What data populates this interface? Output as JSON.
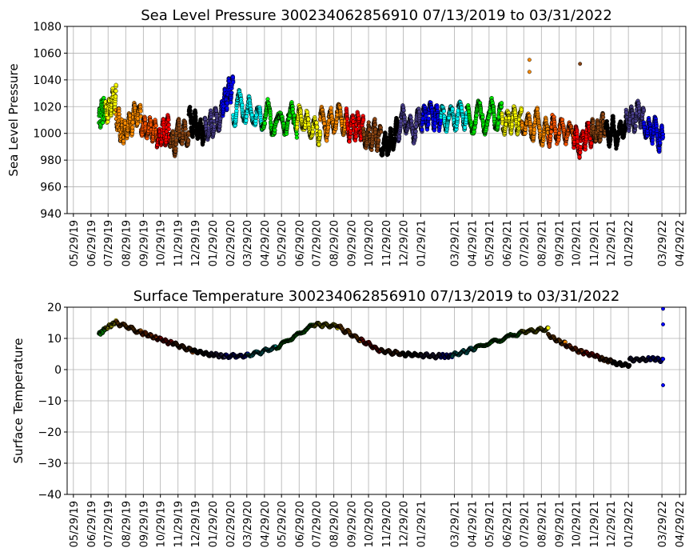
{
  "chart_data": [
    {
      "type": "scatter",
      "title": "Sea Level Pressure 300234062856910  07/13/2019 to 03/31/2022",
      "xlabel": "",
      "ylabel": "Sea Level Pressure",
      "ylim": [
        940,
        1080
      ],
      "yticks": [
        940,
        960,
        980,
        1000,
        1020,
        1040,
        1060,
        1080
      ],
      "xlim": [
        "05/18/2019",
        "05/10/2022"
      ],
      "xticks": [
        "05/29/19",
        "06/29/19",
        "07/29/19",
        "08/29/19",
        "09/29/19",
        "10/29/19",
        "11/29/19",
        "12/29/19",
        "01/29/20",
        "02/29/20",
        "03/29/20",
        "04/29/20",
        "05/29/20",
        "06/29/20",
        "07/29/20",
        "08/29/20",
        "09/29/20",
        "10/29/20",
        "11/29/20",
        "12/29/20",
        "01/29/21",
        "03/29/21",
        "04/29/21",
        "05/29/21",
        "06/29/21",
        "07/29/21",
        "08/29/21",
        "09/29/21",
        "10/29/21",
        "11/29/21",
        "12/29/21",
        "01/29/22",
        "03/29/22",
        "04/29/22"
      ],
      "grid": true,
      "series": [
        {
          "color": "#00ee00",
          "x": [
            "07/13/2019",
            "07/24/2019"
          ],
          "y": [
            1008,
            1020
          ]
        },
        {
          "color": "#ffff00",
          "x": [
            "07/24/2019",
            "08/12/2019"
          ],
          "y": [
            1014,
            1028
          ]
        },
        {
          "color": "#ff8c00",
          "x": [
            "08/12/2019",
            "08/28/2019"
          ],
          "y": [
            1010,
            1000
          ]
        },
        {
          "color": "#ff8c00",
          "x": [
            "08/28/2019",
            "09/25/2019"
          ],
          "y": [
            1002,
            1014
          ]
        },
        {
          "color": "#ff5500",
          "x": [
            "09/25/2019",
            "10/23/2019"
          ],
          "y": [
            1008,
            1000
          ]
        },
        {
          "color": "#ff0000",
          "x": [
            "10/23/2019",
            "11/15/2019"
          ],
          "y": [
            996,
            1004
          ]
        },
        {
          "color": "#8b4513",
          "x": [
            "11/15/2019",
            "12/18/2019"
          ],
          "y": [
            990,
            1002
          ]
        },
        {
          "color": "#000000",
          "x": [
            "12/18/2019",
            "01/15/2020"
          ],
          "y": [
            1010,
            1000
          ]
        },
        {
          "color": "#483d8b",
          "x": [
            "01/15/2020",
            "02/14/2020"
          ],
          "y": [
            1004,
            1014
          ]
        },
        {
          "color": "#0000ff",
          "x": [
            "02/14/2020",
            "03/05/2020"
          ],
          "y": [
            1022,
            1032
          ]
        },
        {
          "color": "#00ffff",
          "x": [
            "03/05/2020",
            "04/25/2020"
          ],
          "y": [
            1018,
            1010
          ]
        },
        {
          "color": "#00ee00",
          "x": [
            "04/25/2020",
            "06/25/2020"
          ],
          "y": [
            1012,
            1010
          ]
        },
        {
          "color": "#ffff00",
          "x": [
            "06/25/2020",
            "08/05/2020"
          ],
          "y": [
            1008,
            1006
          ]
        },
        {
          "color": "#ff8c00",
          "x": [
            "08/05/2020",
            "09/20/2020"
          ],
          "y": [
            1006,
            1012
          ]
        },
        {
          "color": "#ff0000",
          "x": [
            "09/20/2020",
            "10/20/2020"
          ],
          "y": [
            1008,
            1002
          ]
        },
        {
          "color": "#8b4513",
          "x": [
            "10/20/2020",
            "11/20/2020"
          ],
          "y": [
            1000,
            996
          ]
        },
        {
          "color": "#000000",
          "x": [
            "11/20/2020",
            "12/20/2020"
          ],
          "y": [
            990,
            1000
          ]
        },
        {
          "color": "#483d8b",
          "x": [
            "12/20/2020",
            "01/31/2021"
          ],
          "y": [
            1006,
            1010
          ]
        },
        {
          "color": "#0000ff",
          "x": [
            "01/31/2021",
            "03/05/2021"
          ],
          "y": [
            1010,
            1014
          ]
        },
        {
          "color": "#00ffff",
          "x": [
            "03/05/2021",
            "04/20/2021"
          ],
          "y": [
            1012,
            1014
          ]
        },
        {
          "color": "#00ee00",
          "x": [
            "04/20/2021",
            "06/20/2021"
          ],
          "y": [
            1014,
            1012
          ]
        },
        {
          "color": "#ffff00",
          "x": [
            "06/20/2021",
            "07/25/2021"
          ],
          "y": [
            1010,
            1008
          ]
        },
        {
          "color": "#ff8c00",
          "x": [
            "07/25/2021",
            "09/10/2021"
          ],
          "y": [
            1008,
            1000
          ]
        },
        {
          "color": "#ff5500",
          "x": [
            "09/10/2021",
            "10/25/2021"
          ],
          "y": [
            1004,
            1000
          ]
        },
        {
          "color": "#ff0000",
          "x": [
            "10/25/2021",
            "11/25/2021"
          ],
          "y": [
            996,
            1000
          ]
        },
        {
          "color": "#8b4513",
          "x": [
            "11/25/2021",
            "12/20/2021"
          ],
          "y": [
            1000,
            1006
          ]
        },
        {
          "color": "#000000",
          "x": [
            "12/20/2021",
            "01/25/2022"
          ],
          "y": [
            1000,
            1004
          ]
        },
        {
          "color": "#483d8b",
          "x": [
            "01/25/2022",
            "02/25/2022"
          ],
          "y": [
            1010,
            1014
          ]
        },
        {
          "color": "#0000ff",
          "x": [
            "02/25/2022",
            "03/31/2022"
          ],
          "y": [
            1006,
            998
          ]
        }
      ],
      "outliers": [
        {
          "color": "#ff8c00",
          "x": "08/08/2021",
          "y": 1055
        },
        {
          "color": "#ff8c00",
          "x": "08/08/2021",
          "y": 1046
        },
        {
          "color": "#8b4513",
          "x": "11/05/2021",
          "y": 1052
        }
      ]
    },
    {
      "type": "scatter",
      "title": "Surface Temperature 300234062856910  07/13/2019 to 03/31/2022",
      "xlabel": "",
      "ylabel": "Surface Temperature",
      "ylim": [
        -40,
        20
      ],
      "yticks": [
        -40,
        -30,
        -20,
        -10,
        0,
        10,
        20
      ],
      "xlim": [
        "05/18/2019",
        "05/10/2022"
      ],
      "xticks": [
        "05/29/19",
        "06/29/19",
        "07/29/19",
        "08/29/19",
        "09/29/19",
        "10/29/19",
        "11/29/19",
        "12/29/19",
        "01/29/20",
        "02/29/20",
        "03/29/20",
        "04/29/20",
        "05/29/20",
        "06/29/20",
        "07/29/20",
        "08/29/20",
        "09/29/20",
        "10/29/20",
        "11/29/20",
        "12/29/20",
        "01/29/21",
        "03/29/21",
        "04/29/21",
        "05/29/21",
        "06/29/21",
        "07/29/21",
        "08/29/21",
        "09/29/21",
        "10/29/21",
        "11/29/21",
        "12/29/21",
        "01/29/22",
        "03/29/22",
        "04/29/22"
      ],
      "grid": true,
      "series": [
        {
          "color": "#00ee00",
          "x": [
            "07/13/2019",
            "07/24/2019"
          ],
          "y": [
            11.5,
            13
          ]
        },
        {
          "color": "#ffff00",
          "x": [
            "07/24/2019",
            "08/12/2019"
          ],
          "y": [
            13,
            15.5
          ]
        },
        {
          "color": "#ff8c00",
          "x": [
            "08/12/2019",
            "09/25/2019"
          ],
          "y": [
            15,
            12
          ]
        },
        {
          "color": "#ff5500",
          "x": [
            "09/25/2019",
            "10/23/2019"
          ],
          "y": [
            12,
            10
          ]
        },
        {
          "color": "#ff0000",
          "x": [
            "10/23/2019",
            "11/20/2019"
          ],
          "y": [
            10,
            8.5
          ]
        },
        {
          "color": "#8b4513",
          "x": [
            "11/20/2019",
            "12/25/2019"
          ],
          "y": [
            8.5,
            6
          ]
        },
        {
          "color": "#000000",
          "x": [
            "12/25/2019",
            "01/25/2020"
          ],
          "y": [
            6,
            4.8
          ]
        },
        {
          "color": "#483d8b",
          "x": [
            "01/25/2020",
            "02/20/2020"
          ],
          "y": [
            4.8,
            4.3
          ]
        },
        {
          "color": "#0000ff",
          "x": [
            "02/20/2020",
            "03/31/2020"
          ],
          "y": [
            4.3,
            4.5
          ]
        },
        {
          "color": "#00ffff",
          "x": [
            "03/31/2020",
            "05/20/2020"
          ],
          "y": [
            4.5,
            7
          ]
        },
        {
          "color": "#00ee00",
          "x": [
            "05/20/2020",
            "07/25/2020"
          ],
          "y": [
            7,
            14.5
          ]
        },
        {
          "color": "#ffff00",
          "x": [
            "07/25/2020",
            "09/05/2020"
          ],
          "y": [
            14.5,
            14
          ]
        },
        {
          "color": "#ff8c00",
          "x": [
            "09/05/2020",
            "10/15/2020"
          ],
          "y": [
            14,
            9.5
          ]
        },
        {
          "color": "#ff0000",
          "x": [
            "10/15/2020",
            "11/20/2020"
          ],
          "y": [
            9.5,
            6
          ]
        },
        {
          "color": "#8b4513",
          "x": [
            "11/20/2020",
            "12/29/2020"
          ],
          "y": [
            6,
            5
          ]
        },
        {
          "color": "#000000",
          "x": [
            "12/29/2020",
            "01/31/2021"
          ],
          "y": [
            5,
            4.5
          ]
        },
        {
          "color": "#483d8b",
          "x": [
            "01/31/2021",
            "03/05/2021"
          ],
          "y": [
            4.5,
            4.3
          ]
        },
        {
          "color": "#0000ff",
          "x": [
            "03/05/2021",
            "03/25/2021"
          ],
          "y": [
            4.3,
            4.5
          ]
        },
        {
          "color": "#00ffff",
          "x": [
            "03/25/2021",
            "05/05/2021"
          ],
          "y": [
            4.5,
            7
          ]
        },
        {
          "color": "#00ee00",
          "x": [
            "05/05/2021",
            "07/25/2021"
          ],
          "y": [
            7,
            12
          ]
        },
        {
          "color": "#ffff00",
          "x": [
            "07/25/2021",
            "09/10/2021"
          ],
          "y": [
            12,
            13
          ]
        },
        {
          "color": "#ff8c00",
          "x": [
            "09/10/2021",
            "10/10/2021"
          ],
          "y": [
            11,
            8
          ]
        },
        {
          "color": "#ff5500",
          "x": [
            "10/10/2021",
            "11/10/2021"
          ],
          "y": [
            8,
            5.5
          ]
        },
        {
          "color": "#ff0000",
          "x": [
            "11/10/2021",
            "12/10/2021"
          ],
          "y": [
            5.5,
            4
          ]
        },
        {
          "color": "#8b4513",
          "x": [
            "12/10/2021",
            "01/01/2022"
          ],
          "y": [
            3.5,
            3
          ]
        },
        {
          "color": "#000000",
          "x": [
            "01/01/2022",
            "01/31/2022"
          ],
          "y": [
            2,
            1.5
          ]
        },
        {
          "color": "#483d8b",
          "x": [
            "01/31/2022",
            "03/05/2022"
          ],
          "y": [
            3,
            3.5
          ]
        },
        {
          "color": "#0000ff",
          "x": [
            "03/05/2022",
            "03/31/2022"
          ],
          "y": [
            3.5,
            3
          ]
        }
      ],
      "outliers": [
        {
          "color": "#0000ff",
          "x": "03/31/2022",
          "y": 19.5
        },
        {
          "color": "#0000ff",
          "x": "03/31/2022",
          "y": 14.5
        },
        {
          "color": "#0000ff",
          "x": "03/31/2022",
          "y": -5
        }
      ]
    }
  ]
}
